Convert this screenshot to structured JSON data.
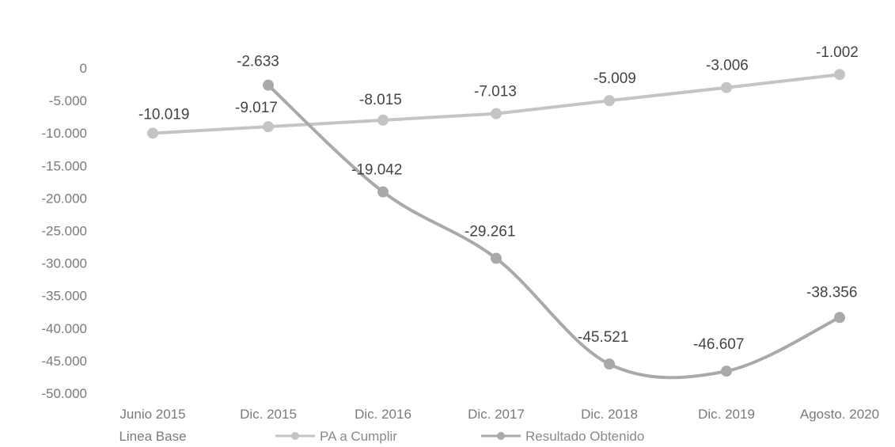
{
  "chart_data": {
    "type": "line",
    "categories": [
      "Junio 2015",
      "Dic. 2015",
      "Dic. 2016",
      "Dic. 2017",
      "Dic. 2018",
      "Dic. 2019",
      "Agosto. 2020"
    ],
    "category_sublabel": "Linea Base",
    "ylim": [
      -50000,
      0
    ],
    "yticks": [
      0,
      -5000,
      -10000,
      -15000,
      -20000,
      -25000,
      -30000,
      -35000,
      -40000,
      -45000,
      -50000
    ],
    "ytick_labels": [
      "0",
      "-5.000",
      "-10.000",
      "-15.000",
      "-20.000",
      "-25.000",
      "-30.000",
      "-35.000",
      "-40.000",
      "-45.000",
      "-50.000"
    ],
    "grid": false,
    "legend_position": "bottom",
    "series": [
      {
        "name": "PA a Cumplir",
        "color": "#c4c4c4",
        "values": [
          -10019,
          -9017,
          -8015,
          -7013,
          -5009,
          -3006,
          -1002
        ],
        "labels": [
          "-10.019",
          "-9.017",
          "-8.015",
          "-7.013",
          "-5.009",
          "-3.006",
          "-1.002"
        ]
      },
      {
        "name": "Resultado Obtenido",
        "color": "#a9a9a9",
        "values": [
          null,
          -2633,
          -19042,
          -29261,
          -45521,
          -46607,
          -38356
        ],
        "labels": [
          "",
          "-2.633",
          "-19.042",
          "-29.261",
          "-45.521",
          "-46.607",
          "-38.356"
        ],
        "smooth": true
      }
    ]
  }
}
